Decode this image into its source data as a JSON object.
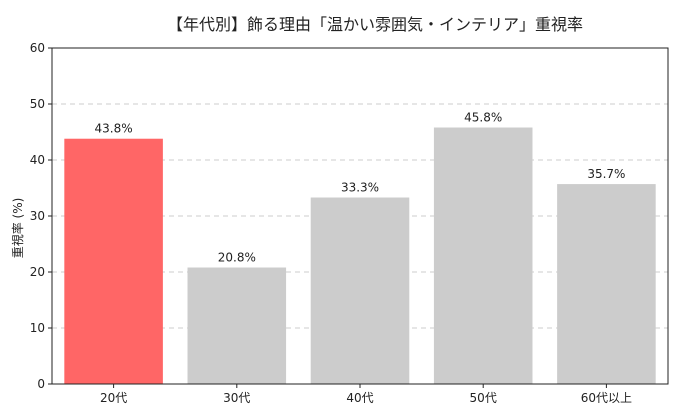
{
  "chart_data": {
    "type": "bar",
    "title": "【年代別】飾る理由「温かい雰囲気・インテリア」重視率",
    "xlabel": "",
    "ylabel": "重視率 (%)",
    "categories": [
      "20代",
      "30代",
      "40代",
      "50代",
      "60代以上"
    ],
    "values": [
      43.8,
      20.8,
      33.3,
      45.8,
      35.7
    ],
    "data_labels": [
      "43.8%",
      "20.8%",
      "33.3%",
      "45.8%",
      "35.7%"
    ],
    "ylim": [
      0,
      60
    ],
    "yticks": [
      0,
      10,
      20,
      30,
      40,
      50,
      60
    ],
    "grid": "y-dashed",
    "highlight_index": 0,
    "colors": {
      "highlight": "#ff6666",
      "default": "#cccccc",
      "grid": "#cccccc"
    }
  }
}
